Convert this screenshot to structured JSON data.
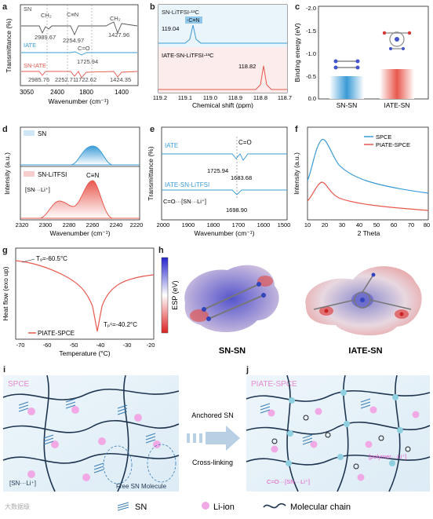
{
  "panels": {
    "a": {
      "letter": "a",
      "xlabel": "Wavenumber (cm⁻¹)",
      "ylabel": "Transmittance (%)",
      "xticks": [
        "3050",
        "2400",
        "1800",
        "1400"
      ],
      "series": [
        {
          "name": "SN",
          "color": "#555555",
          "labels": [
            "CH₂",
            "C≡N",
            "CH₂",
            "2989.67",
            "2254.97",
            "1427.96"
          ]
        },
        {
          "name": "IATE",
          "color": "#3a9bd6",
          "labels": [
            "C=O",
            "1725.94"
          ]
        },
        {
          "name": "SN-IATE",
          "color": "#e8584e",
          "labels": [
            "2985.76",
            "2252.71",
            "1722.62",
            "1424.35"
          ]
        }
      ]
    },
    "b": {
      "letter": "b",
      "xlabel": "Chemical shift (ppm)",
      "xticks": [
        "119.2",
        "119.1",
        "119.0",
        "118.9",
        "118.8",
        "118.7"
      ],
      "top_label": "SN-LiTFSI-¹³C",
      "top_tag": "-C≡N",
      "top_peak": "119.04",
      "bottom_label": "IATE-SN-LiTFSI-¹³C",
      "bottom_peak": "118.82"
    },
    "c": {
      "letter": "c",
      "ylabel": "Binding energy (eV)",
      "yticks": [
        "-2.0",
        "-1.5",
        "-1.0",
        "-0.5",
        "0.0"
      ],
      "categories": [
        "SN-SN",
        "IATE-SN"
      ]
    },
    "d": {
      "letter": "d",
      "xlabel": "Wavenumber (cm⁻¹)",
      "ylabel": "Intensity (a.u.)",
      "xticks": [
        "2320",
        "2300",
        "2280",
        "2260",
        "2240",
        "2220"
      ],
      "legend_top": "SN",
      "legend_bottom": "SN-LiTFSI",
      "annot_cn": "C≡N",
      "annot_complex": "[SN···Li⁺]"
    },
    "e": {
      "letter": "e",
      "xlabel": "Wavenumber (cm⁻¹)",
      "ylabel": "Transmittance (%)",
      "xticks": [
        "2000",
        "1900",
        "1800",
        "1700",
        "1600",
        "1500"
      ],
      "series_top": "IATE",
      "series_bottom": "IATE-SN-LiTFSI",
      "annot_co": "C=O",
      "peak1": "1725.94",
      "peak2": "1683.68",
      "annot_complex": "C=O···[SN···Li⁺]",
      "peak3": "1698.90"
    },
    "f": {
      "letter": "f",
      "xlabel": "2 Theta",
      "ylabel": "Intensity (a.u.)",
      "xticks": [
        "10",
        "20",
        "30",
        "40",
        "50",
        "60",
        "70",
        "80"
      ],
      "legend": [
        {
          "name": "SPCE",
          "color": "#3a9bd6"
        },
        {
          "name": "PIATE-SPCE",
          "color": "#e8584e"
        }
      ]
    },
    "g": {
      "letter": "g",
      "xlabel": "Temperature (°C)",
      "ylabel": "Heat flow (exo up)",
      "xticks": [
        "-70",
        "-60",
        "-50",
        "-40",
        "-30",
        "-20"
      ],
      "tg": "T₉=-60.5°C",
      "tpc": "Tₚᶜ=-40.2°C",
      "legend": "PIATE-SPCE"
    },
    "h": {
      "letter": "h",
      "colorbar_label": "ESP (eV)",
      "left_title": "SN-SN",
      "right_title": "IATE-SN"
    },
    "i": {
      "letter": "i",
      "title": "SPCE",
      "complex_label": "[SN···Li⁺]",
      "free_label": "Free SN Molecule"
    },
    "arrow": {
      "top": "Anchored SN",
      "bottom": "Cross-linking"
    },
    "j": {
      "letter": "j",
      "title": "PIATE-SPCE",
      "co_label": "C=O···[SN···Li⁺]",
      "polymer_label": "[polymer···Li⁺]"
    }
  },
  "legend": {
    "sn": "SN",
    "li": "Li-ion",
    "chain": "Molecular chain"
  },
  "watermark": "大数据级"
}
